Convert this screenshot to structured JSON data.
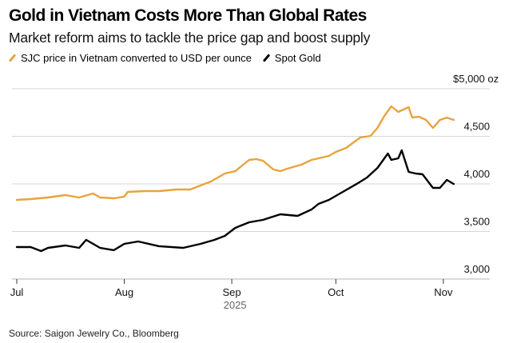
{
  "header": {
    "title": "Gold in Vietnam Costs More Than Global Rates",
    "subtitle": "Market reform aims to tackle the price gap and boost supply"
  },
  "source": "Source: Saigon Jewelry Co., Bloomberg",
  "chart_data": {
    "type": "line",
    "title": "Gold in Vietnam Costs More Than Global Rates",
    "subtitle": "Market reform aims to tackle the price gap and boost supply",
    "xlabel": "2025",
    "ylabel": "",
    "ylim": [
      3000,
      5000
    ],
    "yticks": [
      3000,
      3500,
      4000,
      4500,
      5000
    ],
    "ytick_labels": [
      "3,000",
      "3,500",
      "4,000",
      "4,500",
      "$5,000 oz"
    ],
    "xticks": [
      "Jul",
      "Aug",
      "Sep",
      "Oct",
      "Nov"
    ],
    "xtick_days": [
      0,
      31,
      62,
      92,
      123
    ],
    "x_unit": "days since 2025-07-01",
    "grid": true,
    "legend_position": "top-left",
    "series": [
      {
        "name": "SJC price in Vietnam converted to USD per ounce",
        "color": "#E8A33D",
        "x": [
          0,
          4,
          9,
          14,
          18,
          22,
          24,
          28,
          31,
          32,
          37,
          41,
          46,
          50,
          53,
          56,
          60,
          63,
          67,
          69,
          71,
          74,
          76,
          78,
          82,
          85,
          90,
          92,
          95,
          99,
          102,
          104,
          106,
          108,
          110,
          113,
          114,
          116,
          118,
          119,
          120,
          122,
          124,
          126
        ],
        "y": [
          3832,
          3840,
          3857,
          3882,
          3857,
          3899,
          3857,
          3849,
          3866,
          3916,
          3924,
          3924,
          3941,
          3941,
          3983,
          4025,
          4109,
          4134,
          4252,
          4261,
          4244,
          4151,
          4134,
          4160,
          4202,
          4252,
          4294,
          4336,
          4378,
          4487,
          4504,
          4588,
          4714,
          4815,
          4756,
          4807,
          4698,
          4706,
          4672,
          4630,
          4588,
          4672,
          4697,
          4672
        ]
      },
      {
        "name": "Spot Gold",
        "color": "#000000",
        "x": [
          0,
          4,
          7,
          9,
          14,
          18,
          20,
          24,
          28,
          31,
          35,
          41,
          48,
          53,
          57,
          60,
          63,
          67,
          71,
          76,
          81,
          85,
          87,
          90,
          92,
          94,
          98,
          101,
          104,
          107,
          108,
          110,
          111,
          113,
          115,
          117,
          120,
          122,
          124,
          126
        ],
        "y": [
          3336,
          3336,
          3294,
          3328,
          3353,
          3328,
          3412,
          3328,
          3303,
          3370,
          3395,
          3345,
          3328,
          3370,
          3412,
          3454,
          3538,
          3597,
          3622,
          3681,
          3664,
          3731,
          3790,
          3832,
          3874,
          3916,
          3999,
          4067,
          4168,
          4319,
          4252,
          4269,
          4353,
          4126,
          4109,
          4101,
          3958,
          3958,
          4042,
          3999
        ]
      }
    ]
  }
}
